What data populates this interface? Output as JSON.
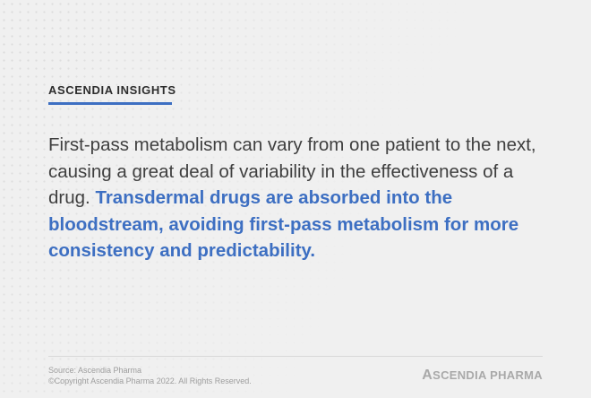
{
  "header": {
    "eyebrow": "ASCENDIA INSIGHTS"
  },
  "quote": {
    "plain": "First-pass metabolism can vary from one patient to the next, causing a great deal of variability in the effectiveness of a drug.",
    "highlight": "Transdermal drugs are absorbed into the bloodstream, avoiding first-pass metabolism for more consistency and predictability."
  },
  "footer": {
    "source": "Source: Ascendia Pharma",
    "copyright": "©Copyright Ascendia Pharma 2022. All Rights Reserved.",
    "logo_initial": "A",
    "logo_rest": "SCENDIA PHARMA"
  },
  "colors": {
    "accent": "#3d6fc2",
    "text": "#3f3f3f",
    "muted": "#9d9d9d",
    "background": "#f0f0f0"
  }
}
